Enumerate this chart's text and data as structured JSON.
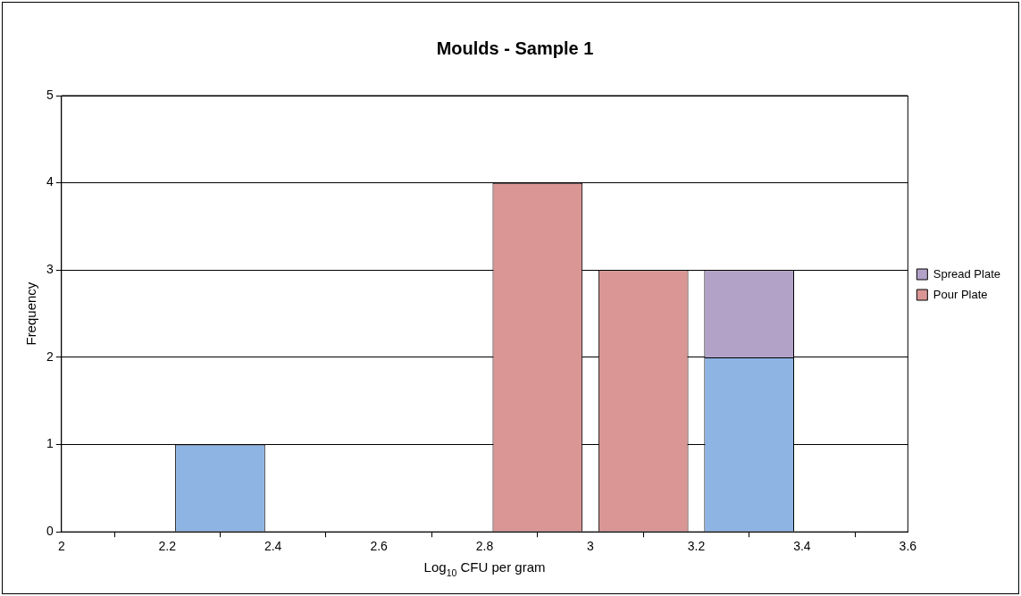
{
  "chart_data": {
    "type": "bar",
    "title": "Moulds - Sample 1",
    "xlabel": "Log$_{10}$ CFU per gram",
    "ylabel": "Frequency",
    "x": [
      2.3,
      2.9,
      3.1,
      3.3
    ],
    "stacked": true,
    "series": [
      {
        "color": "#8eb4e3",
        "values": [
          1,
          null,
          null,
          2
        ]
      },
      {
        "name": "Pour Plate",
        "color": "#d99694",
        "values": [
          null,
          4,
          3,
          null
        ]
      },
      {
        "name": "Spread Plate",
        "color": "#b2a2c7",
        "values": [
          null,
          null,
          null,
          1
        ]
      }
    ],
    "xlim": [
      2,
      3.6
    ],
    "xticks": [
      2,
      2.2,
      2.4,
      2.6,
      2.8,
      3,
      3.2,
      3.4,
      3.6
    ],
    "ylim": [
      0,
      5
    ],
    "yticks": [
      0,
      1,
      2,
      3,
      4,
      5
    ],
    "grid": "y",
    "legend": "right"
  }
}
